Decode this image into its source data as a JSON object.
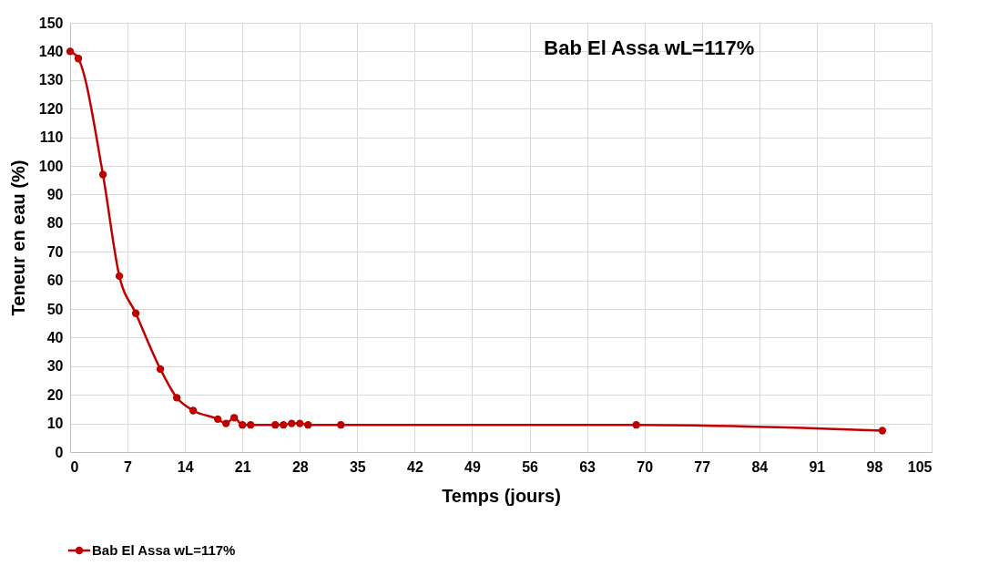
{
  "chart_data": {
    "type": "line",
    "title": "Bab El Assa wL=117%",
    "xlabel": "Temps (jours)",
    "ylabel": "Teneur en eau (%)",
    "x": [
      0,
      1,
      4,
      6,
      8,
      11,
      13,
      15,
      18,
      19,
      20,
      21,
      22,
      25,
      26,
      27,
      28,
      29,
      33,
      69,
      99
    ],
    "series": [
      {
        "name": "Bab El Assa wL=117%",
        "color": "#c00000",
        "values": [
          140,
          137.5,
          97,
          61.5,
          48.5,
          29,
          19,
          14.5,
          11.5,
          10,
          12,
          9.5,
          9.5,
          9.5,
          9.5,
          10,
          10,
          9.5,
          9.5,
          9.5,
          7.5
        ]
      }
    ],
    "xlim": [
      0,
      105
    ],
    "xticks": [
      0,
      7,
      14,
      21,
      28,
      35,
      42,
      49,
      56,
      63,
      70,
      77,
      84,
      91,
      98,
      105
    ],
    "ylim": [
      0,
      150
    ],
    "yticks": [
      0,
      10,
      20,
      30,
      40,
      50,
      60,
      70,
      80,
      90,
      100,
      110,
      120,
      130,
      140,
      150
    ],
    "grid": true,
    "legend": "bottom",
    "marker": "circle",
    "line_style": "solid"
  }
}
